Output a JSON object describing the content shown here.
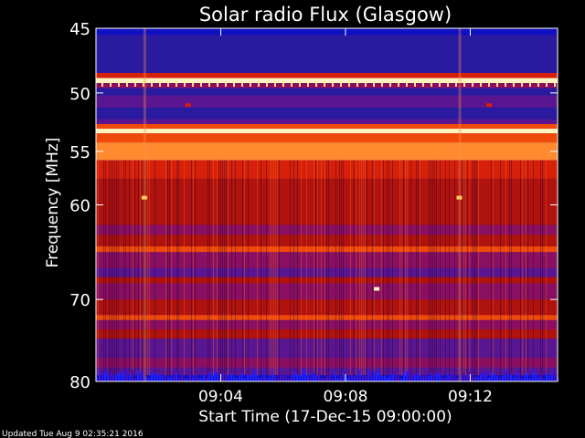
{
  "chart_data": {
    "type": "heatmap",
    "title": "Solar radio Flux (Glasgow)",
    "xlabel": "Start Time (17-Dec-15 09:00:00)",
    "ylabel": "Frequency [MHz]",
    "x_range_minutes": [
      0,
      14.8
    ],
    "x_ticks": [
      {
        "value": 4,
        "label": "09:04"
      },
      {
        "value": 8,
        "label": "09:08"
      },
      {
        "value": 12,
        "label": "09:12"
      }
    ],
    "y_range_mhz": [
      45,
      80
    ],
    "y_scale": "log",
    "y_ticks": [
      {
        "value": 45,
        "label": "45"
      },
      {
        "value": 50,
        "label": "50"
      },
      {
        "value": 55,
        "label": "55"
      },
      {
        "value": 60,
        "label": "60"
      },
      {
        "value": 70,
        "label": "70"
      },
      {
        "value": 80,
        "label": "80"
      }
    ],
    "colormap": [
      "#1010c0",
      "#2a1aa0",
      "#5a1590",
      "#8a0f60",
      "#b0120e",
      "#d6200a",
      "#f04a0a",
      "#ff8a30",
      "#ffd060",
      "#fff4c0"
    ],
    "bands": [
      {
        "f": [
          45.0,
          45.5
        ],
        "level": 0
      },
      {
        "f": [
          45.5,
          48.4
        ],
        "level": 1
      },
      {
        "f": [
          48.4,
          48.8
        ],
        "level": 5
      },
      {
        "f": [
          48.8,
          49.2
        ],
        "level": 9
      },
      {
        "f": [
          49.2,
          49.6
        ],
        "level": 3
      },
      {
        "f": [
          49.6,
          50.2
        ],
        "level": 1
      },
      {
        "f": [
          50.2,
          51.2
        ],
        "level": 2
      },
      {
        "f": [
          51.2,
          52.2
        ],
        "level": 1
      },
      {
        "f": [
          52.2,
          52.6
        ],
        "level": 2
      },
      {
        "f": [
          52.6,
          53.0
        ],
        "level": 6
      },
      {
        "f": [
          53.0,
          53.4
        ],
        "level": 9
      },
      {
        "f": [
          53.4,
          54.2
        ],
        "level": 6
      },
      {
        "f": [
          54.2,
          55.8
        ],
        "level": 7
      },
      {
        "f": [
          55.8,
          57.5
        ],
        "level": 5
      },
      {
        "f": [
          57.5,
          60.0
        ],
        "level": 4
      },
      {
        "f": [
          60.0,
          62.0
        ],
        "level": 4
      },
      {
        "f": [
          62.0,
          63.0
        ],
        "level": 3
      },
      {
        "f": [
          63.0,
          64.2
        ],
        "level": 4
      },
      {
        "f": [
          64.2,
          64.8
        ],
        "level": 6
      },
      {
        "f": [
          64.8,
          66.5
        ],
        "level": 3
      },
      {
        "f": [
          66.5,
          67.5
        ],
        "level": 2
      },
      {
        "f": [
          67.5,
          68.2
        ],
        "level": 4
      },
      {
        "f": [
          68.2,
          70.0
        ],
        "level": 3
      },
      {
        "f": [
          70.0,
          71.8
        ],
        "level": 4
      },
      {
        "f": [
          71.8,
          72.4
        ],
        "level": 6
      },
      {
        "f": [
          72.4,
          73.5
        ],
        "level": 3
      },
      {
        "f": [
          73.5,
          74.6
        ],
        "level": 4
      },
      {
        "f": [
          74.6,
          77.0
        ],
        "level": 2
      },
      {
        "f": [
          77.0,
          78.2
        ],
        "level": 3
      },
      {
        "f": [
          78.2,
          79.2
        ],
        "level": 2
      },
      {
        "f": [
          79.2,
          80.0
        ],
        "level": 0
      }
    ],
    "hotspots": [
      {
        "t": 1.55,
        "f": 59.3,
        "level": 8
      },
      {
        "t": 11.65,
        "f": 59.3,
        "level": 8
      },
      {
        "t": 2.95,
        "f": 51.0,
        "level": 5
      },
      {
        "t": 12.6,
        "f": 51.0,
        "level": 5
      },
      {
        "t": 9.0,
        "f": 68.8,
        "level": 9
      }
    ]
  },
  "footer": {
    "updated": "Updated Tue Aug  9 02:35:21 2016"
  }
}
